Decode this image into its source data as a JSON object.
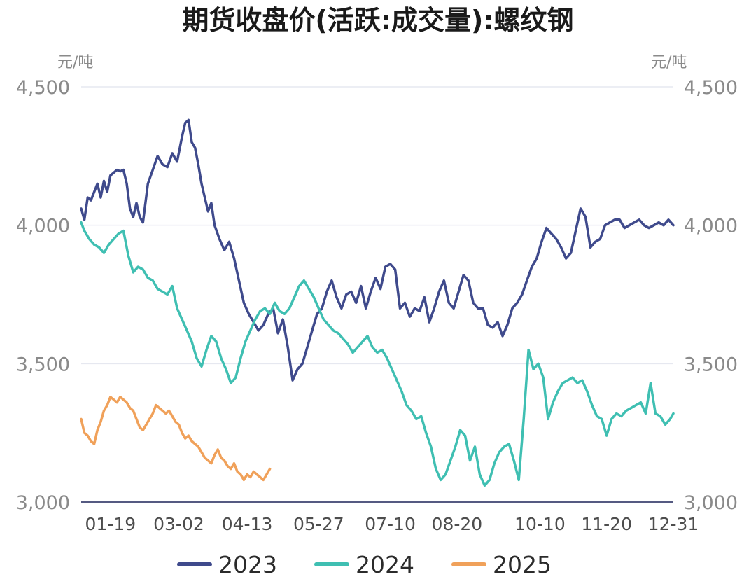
{
  "chart_data": {
    "type": "line",
    "title": "期货收盘价(活跃:成交量):螺纹钢",
    "unit_left": "元/吨",
    "unit_right": "元/吨",
    "ylim": [
      3000,
      4500
    ],
    "yticks": [
      3000,
      3500,
      4000,
      4500
    ],
    "ytick_labels": [
      "3,000",
      "3,500",
      "4,000",
      "4,500"
    ],
    "xlim": [
      1,
      365
    ],
    "xticks": [
      {
        "label": "01-19",
        "day": 19
      },
      {
        "label": "03-02",
        "day": 61
      },
      {
        "label": "04-13",
        "day": 103
      },
      {
        "label": "05-27",
        "day": 147
      },
      {
        "label": "07-10",
        "day": 191
      },
      {
        "label": "08-20",
        "day": 232
      },
      {
        "label": "10-10",
        "day": 283
      },
      {
        "label": "11-20",
        "day": 324
      },
      {
        "label": "12-31",
        "day": 365
      }
    ],
    "series": [
      {
        "name": "2023",
        "color": "#3f4a8c",
        "x": [
          1,
          3,
          5,
          7,
          9,
          11,
          13,
          15,
          17,
          19,
          21,
          23,
          25,
          27,
          29,
          31,
          33,
          35,
          37,
          39,
          42,
          45,
          48,
          51,
          54,
          57,
          60,
          63,
          65,
          67,
          69,
          71,
          73,
          75,
          77,
          79,
          81,
          83,
          86,
          89,
          92,
          95,
          98,
          101,
          104,
          107,
          110,
          113,
          116,
          119,
          122,
          125,
          128,
          131,
          134,
          137,
          140,
          143,
          146,
          149,
          152,
          155,
          158,
          161,
          164,
          167,
          170,
          173,
          176,
          179,
          182,
          185,
          188,
          191,
          194,
          197,
          200,
          203,
          206,
          209,
          212,
          215,
          218,
          221,
          224,
          227,
          230,
          233,
          236,
          239,
          242,
          245,
          248,
          251,
          254,
          257,
          260,
          263,
          266,
          269,
          272,
          275,
          278,
          281,
          284,
          287,
          290,
          293,
          296,
          299,
          302,
          305,
          308,
          311,
          314,
          317,
          320,
          323,
          326,
          329,
          332,
          335,
          338,
          341,
          344,
          347,
          350,
          353,
          356,
          359,
          362,
          365
        ],
        "values": [
          4060,
          4020,
          4100,
          4090,
          4120,
          4150,
          4100,
          4160,
          4120,
          4180,
          4190,
          4200,
          4195,
          4200,
          4150,
          4060,
          4030,
          4080,
          4030,
          4010,
          4150,
          4200,
          4250,
          4220,
          4210,
          4260,
          4230,
          4320,
          4370,
          4380,
          4300,
          4280,
          4220,
          4150,
          4100,
          4050,
          4080,
          4000,
          3950,
          3910,
          3940,
          3880,
          3800,
          3720,
          3680,
          3650,
          3620,
          3640,
          3680,
          3700,
          3610,
          3660,
          3560,
          3440,
          3480,
          3500,
          3560,
          3620,
          3680,
          3700,
          3760,
          3800,
          3740,
          3700,
          3750,
          3760,
          3720,
          3780,
          3700,
          3760,
          3810,
          3770,
          3850,
          3860,
          3840,
          3700,
          3720,
          3670,
          3700,
          3690,
          3740,
          3650,
          3700,
          3760,
          3800,
          3720,
          3700,
          3760,
          3820,
          3800,
          3720,
          3700,
          3700,
          3640,
          3630,
          3650,
          3600,
          3640,
          3700,
          3720,
          3750,
          3800,
          3850,
          3880,
          3940,
          3990,
          3970,
          3950,
          3920,
          3880,
          3900,
          3980,
          4060,
          4030,
          3920,
          3940,
          3950,
          4000,
          4010,
          4020,
          4020,
          3990,
          4000,
          4010,
          4020,
          4000,
          3990,
          4000,
          4010,
          4000,
          4020,
          4000
        ]
      },
      {
        "name": "2024",
        "color": "#3fbfb2",
        "x": [
          1,
          3,
          6,
          9,
          12,
          15,
          18,
          21,
          24,
          27,
          30,
          33,
          36,
          39,
          42,
          45,
          48,
          51,
          54,
          57,
          60,
          63,
          66,
          69,
          72,
          75,
          78,
          81,
          84,
          87,
          90,
          93,
          96,
          99,
          102,
          105,
          108,
          111,
          114,
          117,
          120,
          123,
          126,
          129,
          132,
          135,
          138,
          141,
          144,
          147,
          150,
          153,
          156,
          159,
          162,
          165,
          168,
          171,
          174,
          177,
          180,
          183,
          186,
          189,
          192,
          195,
          198,
          201,
          204,
          207,
          210,
          213,
          216,
          219,
          222,
          225,
          228,
          231,
          234,
          237,
          240,
          243,
          246,
          249,
          252,
          255,
          258,
          261,
          264,
          267,
          270,
          273,
          276,
          279,
          282,
          285,
          288,
          291,
          294,
          297,
          300,
          303,
          306,
          309,
          312,
          315,
          318,
          321,
          324,
          327,
          330,
          333,
          336,
          339,
          342,
          345,
          348,
          351,
          354,
          357,
          360,
          363,
          365
        ],
        "values": [
          4010,
          3980,
          3950,
          3930,
          3920,
          3900,
          3930,
          3950,
          3970,
          3980,
          3890,
          3830,
          3850,
          3840,
          3810,
          3800,
          3770,
          3760,
          3750,
          3780,
          3700,
          3660,
          3620,
          3580,
          3520,
          3490,
          3550,
          3600,
          3580,
          3520,
          3480,
          3430,
          3450,
          3520,
          3580,
          3620,
          3660,
          3690,
          3700,
          3680,
          3720,
          3690,
          3680,
          3700,
          3740,
          3780,
          3800,
          3770,
          3740,
          3700,
          3660,
          3640,
          3620,
          3610,
          3590,
          3570,
          3540,
          3560,
          3580,
          3600,
          3560,
          3540,
          3550,
          3520,
          3480,
          3440,
          3400,
          3350,
          3330,
          3300,
          3310,
          3250,
          3200,
          3120,
          3080,
          3100,
          3150,
          3200,
          3260,
          3240,
          3150,
          3200,
          3100,
          3060,
          3080,
          3140,
          3180,
          3200,
          3210,
          3150,
          3080,
          3300,
          3550,
          3480,
          3500,
          3450,
          3300,
          3360,
          3400,
          3430,
          3440,
          3450,
          3430,
          3440,
          3400,
          3350,
          3310,
          3300,
          3240,
          3300,
          3320,
          3310,
          3330,
          3340,
          3350,
          3360,
          3320,
          3430,
          3320,
          3310,
          3280,
          3300,
          3320
        ]
      },
      {
        "name": "2025",
        "color": "#f0a15a",
        "x": [
          1,
          3,
          5,
          7,
          9,
          11,
          13,
          15,
          17,
          19,
          21,
          23,
          25,
          27,
          29,
          31,
          33,
          35,
          37,
          39,
          41,
          43,
          45,
          47,
          49,
          51,
          53,
          55,
          57,
          59,
          61,
          63,
          65,
          67,
          69,
          71,
          73,
          75,
          77,
          79,
          81,
          83,
          85,
          87,
          89,
          91,
          93,
          95,
          97,
          99,
          101,
          103,
          105,
          107,
          109,
          111,
          113,
          115,
          117
        ],
        "values": [
          3300,
          3250,
          3240,
          3220,
          3210,
          3260,
          3290,
          3330,
          3350,
          3380,
          3370,
          3360,
          3380,
          3370,
          3360,
          3340,
          3330,
          3300,
          3270,
          3260,
          3280,
          3300,
          3320,
          3350,
          3340,
          3330,
          3320,
          3330,
          3310,
          3290,
          3280,
          3250,
          3230,
          3240,
          3220,
          3210,
          3200,
          3180,
          3160,
          3150,
          3140,
          3170,
          3190,
          3160,
          3150,
          3130,
          3120,
          3140,
          3110,
          3100,
          3080,
          3100,
          3090,
          3110,
          3100,
          3090,
          3080,
          3100,
          3120
        ]
      }
    ]
  }
}
